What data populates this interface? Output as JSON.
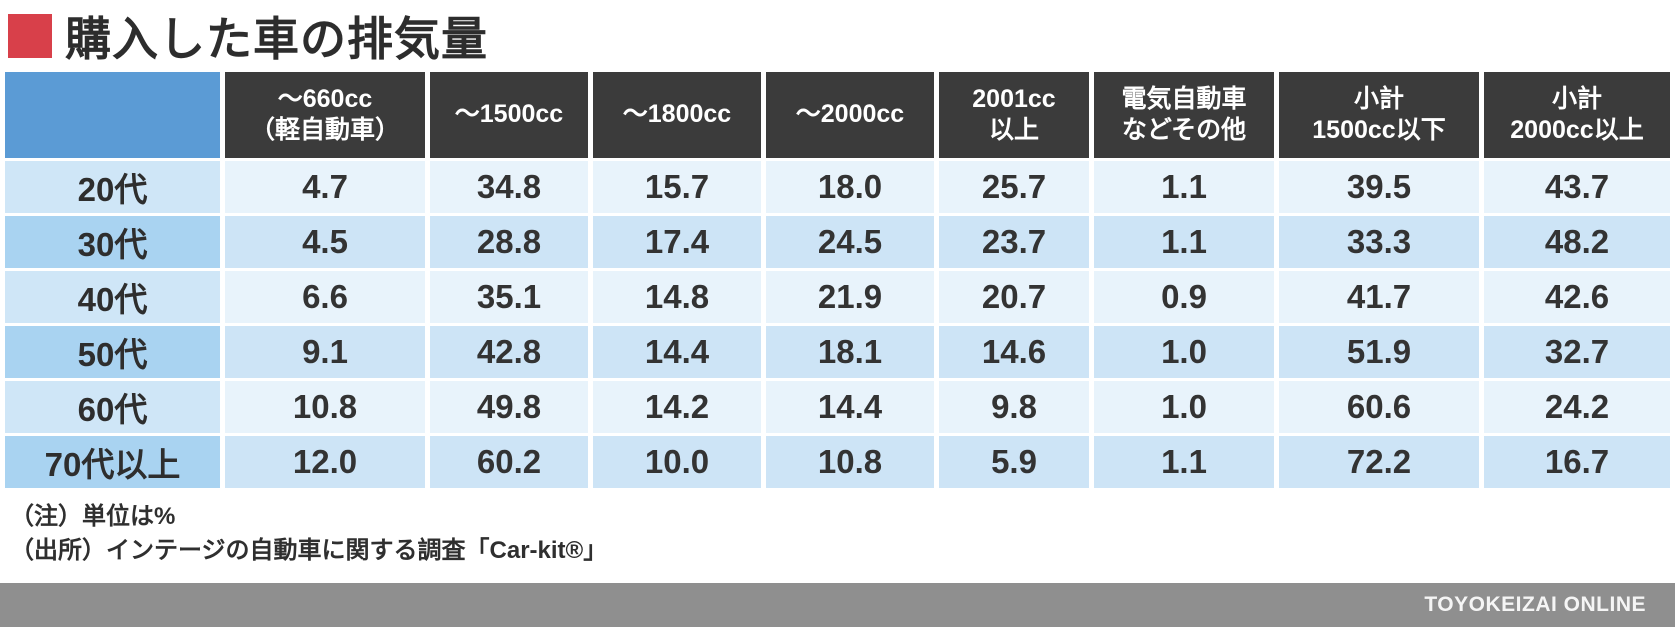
{
  "title": {
    "text": "購入した車の排気量"
  },
  "table": {
    "columns": [
      "",
      "～660cc\n（軽自動車）",
      "～1500cc",
      "～1800cc",
      "～2000cc",
      "2001cc\n以上",
      "電気自動車\nなどその他",
      "小計\n1500cc以下",
      "小計\n2000cc以上"
    ],
    "rows": [
      {
        "label": "20代",
        "values": [
          "4.7",
          "34.8",
          "15.7",
          "18.0",
          "25.7",
          "1.1",
          "39.5",
          "43.7"
        ]
      },
      {
        "label": "30代",
        "values": [
          "4.5",
          "28.8",
          "17.4",
          "24.5",
          "23.7",
          "1.1",
          "33.3",
          "48.2"
        ]
      },
      {
        "label": "40代",
        "values": [
          "6.6",
          "35.1",
          "14.8",
          "21.9",
          "20.7",
          "0.9",
          "41.7",
          "42.6"
        ]
      },
      {
        "label": "50代",
        "values": [
          "9.1",
          "42.8",
          "14.4",
          "18.1",
          "14.6",
          "1.0",
          "51.9",
          "32.7"
        ]
      },
      {
        "label": "60代",
        "values": [
          "10.8",
          "49.8",
          "14.2",
          "14.4",
          "9.8",
          "1.0",
          "60.6",
          "24.2"
        ]
      },
      {
        "label": "70代以上",
        "values": [
          "12.0",
          "60.2",
          "10.0",
          "10.8",
          "5.9",
          "1.1",
          "72.2",
          "16.7"
        ]
      }
    ]
  },
  "notes": [
    "（注）単位は%",
    "（出所）インテージの自動車に関する調査「Car-kit®」"
  ],
  "footer": {
    "brand": "TOYOKEIZAI ONLINE"
  },
  "colors": {
    "accent_red": "#d8404a",
    "header_bg": "#3b3b3b",
    "corner_blue": "#5b9bd5",
    "row_label_light": "#cfe6f7",
    "row_label_dark": "#a9d3f1",
    "cell_light": "#e8f3fb",
    "cell_dark": "#cde4f6",
    "footer_gray": "#8f8f8f"
  },
  "chart_data": {
    "type": "table",
    "title": "購入した車の排気量",
    "unit": "%",
    "row_categories": [
      "20代",
      "30代",
      "40代",
      "50代",
      "60代",
      "70代以上"
    ],
    "column_categories": [
      "～660cc（軽自動車）",
      "～1500cc",
      "～1800cc",
      "～2000cc",
      "2001cc以上",
      "電気自動車などその他",
      "小計1500cc以下",
      "小計2000cc以上"
    ],
    "values": [
      [
        4.7,
        34.8,
        15.7,
        18.0,
        25.7,
        1.1,
        39.5,
        43.7
      ],
      [
        4.5,
        28.8,
        17.4,
        24.5,
        23.7,
        1.1,
        33.3,
        48.2
      ],
      [
        6.6,
        35.1,
        14.8,
        21.9,
        20.7,
        0.9,
        41.7,
        42.6
      ],
      [
        9.1,
        42.8,
        14.4,
        18.1,
        14.6,
        1.0,
        51.9,
        32.7
      ],
      [
        10.8,
        49.8,
        14.2,
        14.4,
        9.8,
        1.0,
        60.6,
        24.2
      ],
      [
        12.0,
        60.2,
        10.0,
        10.8,
        5.9,
        1.1,
        72.2,
        16.7
      ]
    ]
  }
}
